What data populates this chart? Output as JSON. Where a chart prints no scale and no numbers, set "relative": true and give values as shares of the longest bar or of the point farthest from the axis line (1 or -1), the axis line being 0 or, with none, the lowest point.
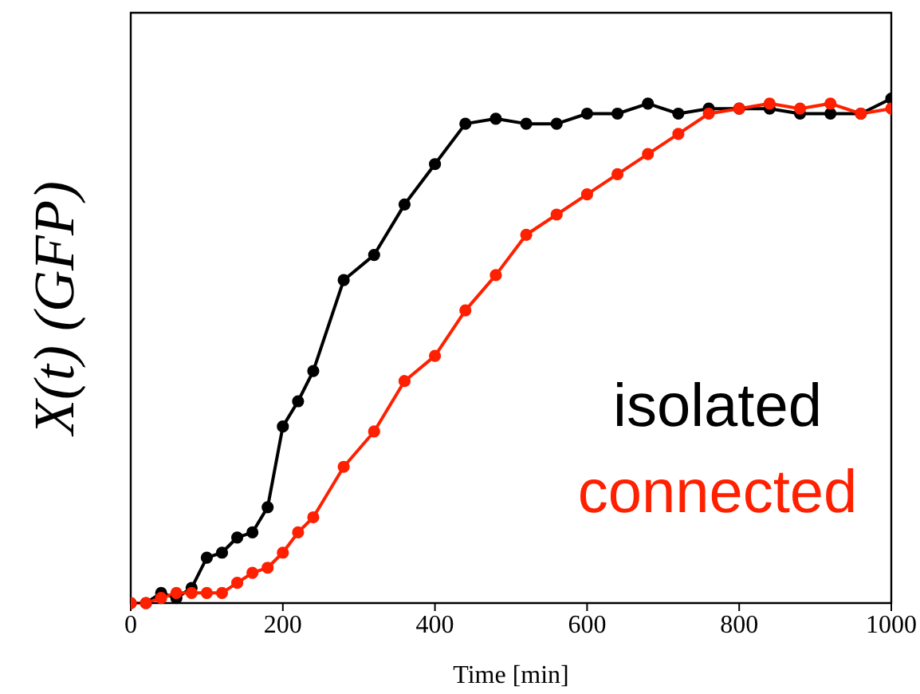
{
  "chart_data": {
    "type": "line",
    "xlabel": "Time [min]",
    "ylabel": "X(t) (GFP)",
    "relative": true,
    "x": [
      0,
      20,
      40,
      60,
      80,
      100,
      120,
      140,
      160,
      180,
      200,
      220,
      240,
      280,
      320,
      360,
      400,
      440,
      480,
      520,
      560,
      600,
      640,
      680,
      720,
      760,
      800,
      840,
      880,
      920,
      960,
      1000
    ],
    "xlim": [
      0,
      1000
    ],
    "xticks": [
      0,
      200,
      400,
      600,
      800,
      1000
    ],
    "grid": false,
    "legend": "bottom right",
    "marker": "circle",
    "line_style": "solid",
    "series": [
      {
        "name": "isolated",
        "color": "#000000",
        "values": [
          0,
          0,
          0.02,
          0.01,
          0.03,
          0.09,
          0.1,
          0.13,
          0.14,
          0.19,
          0.35,
          0.4,
          0.46,
          0.64,
          0.69,
          0.79,
          0.87,
          0.95,
          0.96,
          0.95,
          0.95,
          0.97,
          0.97,
          0.99,
          0.97,
          0.98,
          0.98,
          0.98,
          0.97,
          0.97,
          0.97,
          1
        ]
      },
      {
        "name": "connected",
        "color": "#ff2000",
        "values": [
          0,
          0,
          0.01,
          0.02,
          0.02,
          0.02,
          0.02,
          0.04,
          0.06,
          0.07,
          0.1,
          0.14,
          0.17,
          0.27,
          0.34,
          0.44,
          0.49,
          0.58,
          0.65,
          0.73,
          0.77,
          0.81,
          0.85,
          0.89,
          0.93,
          0.97,
          0.98,
          0.99,
          0.98,
          0.99,
          0.97,
          0.98
        ]
      }
    ]
  }
}
